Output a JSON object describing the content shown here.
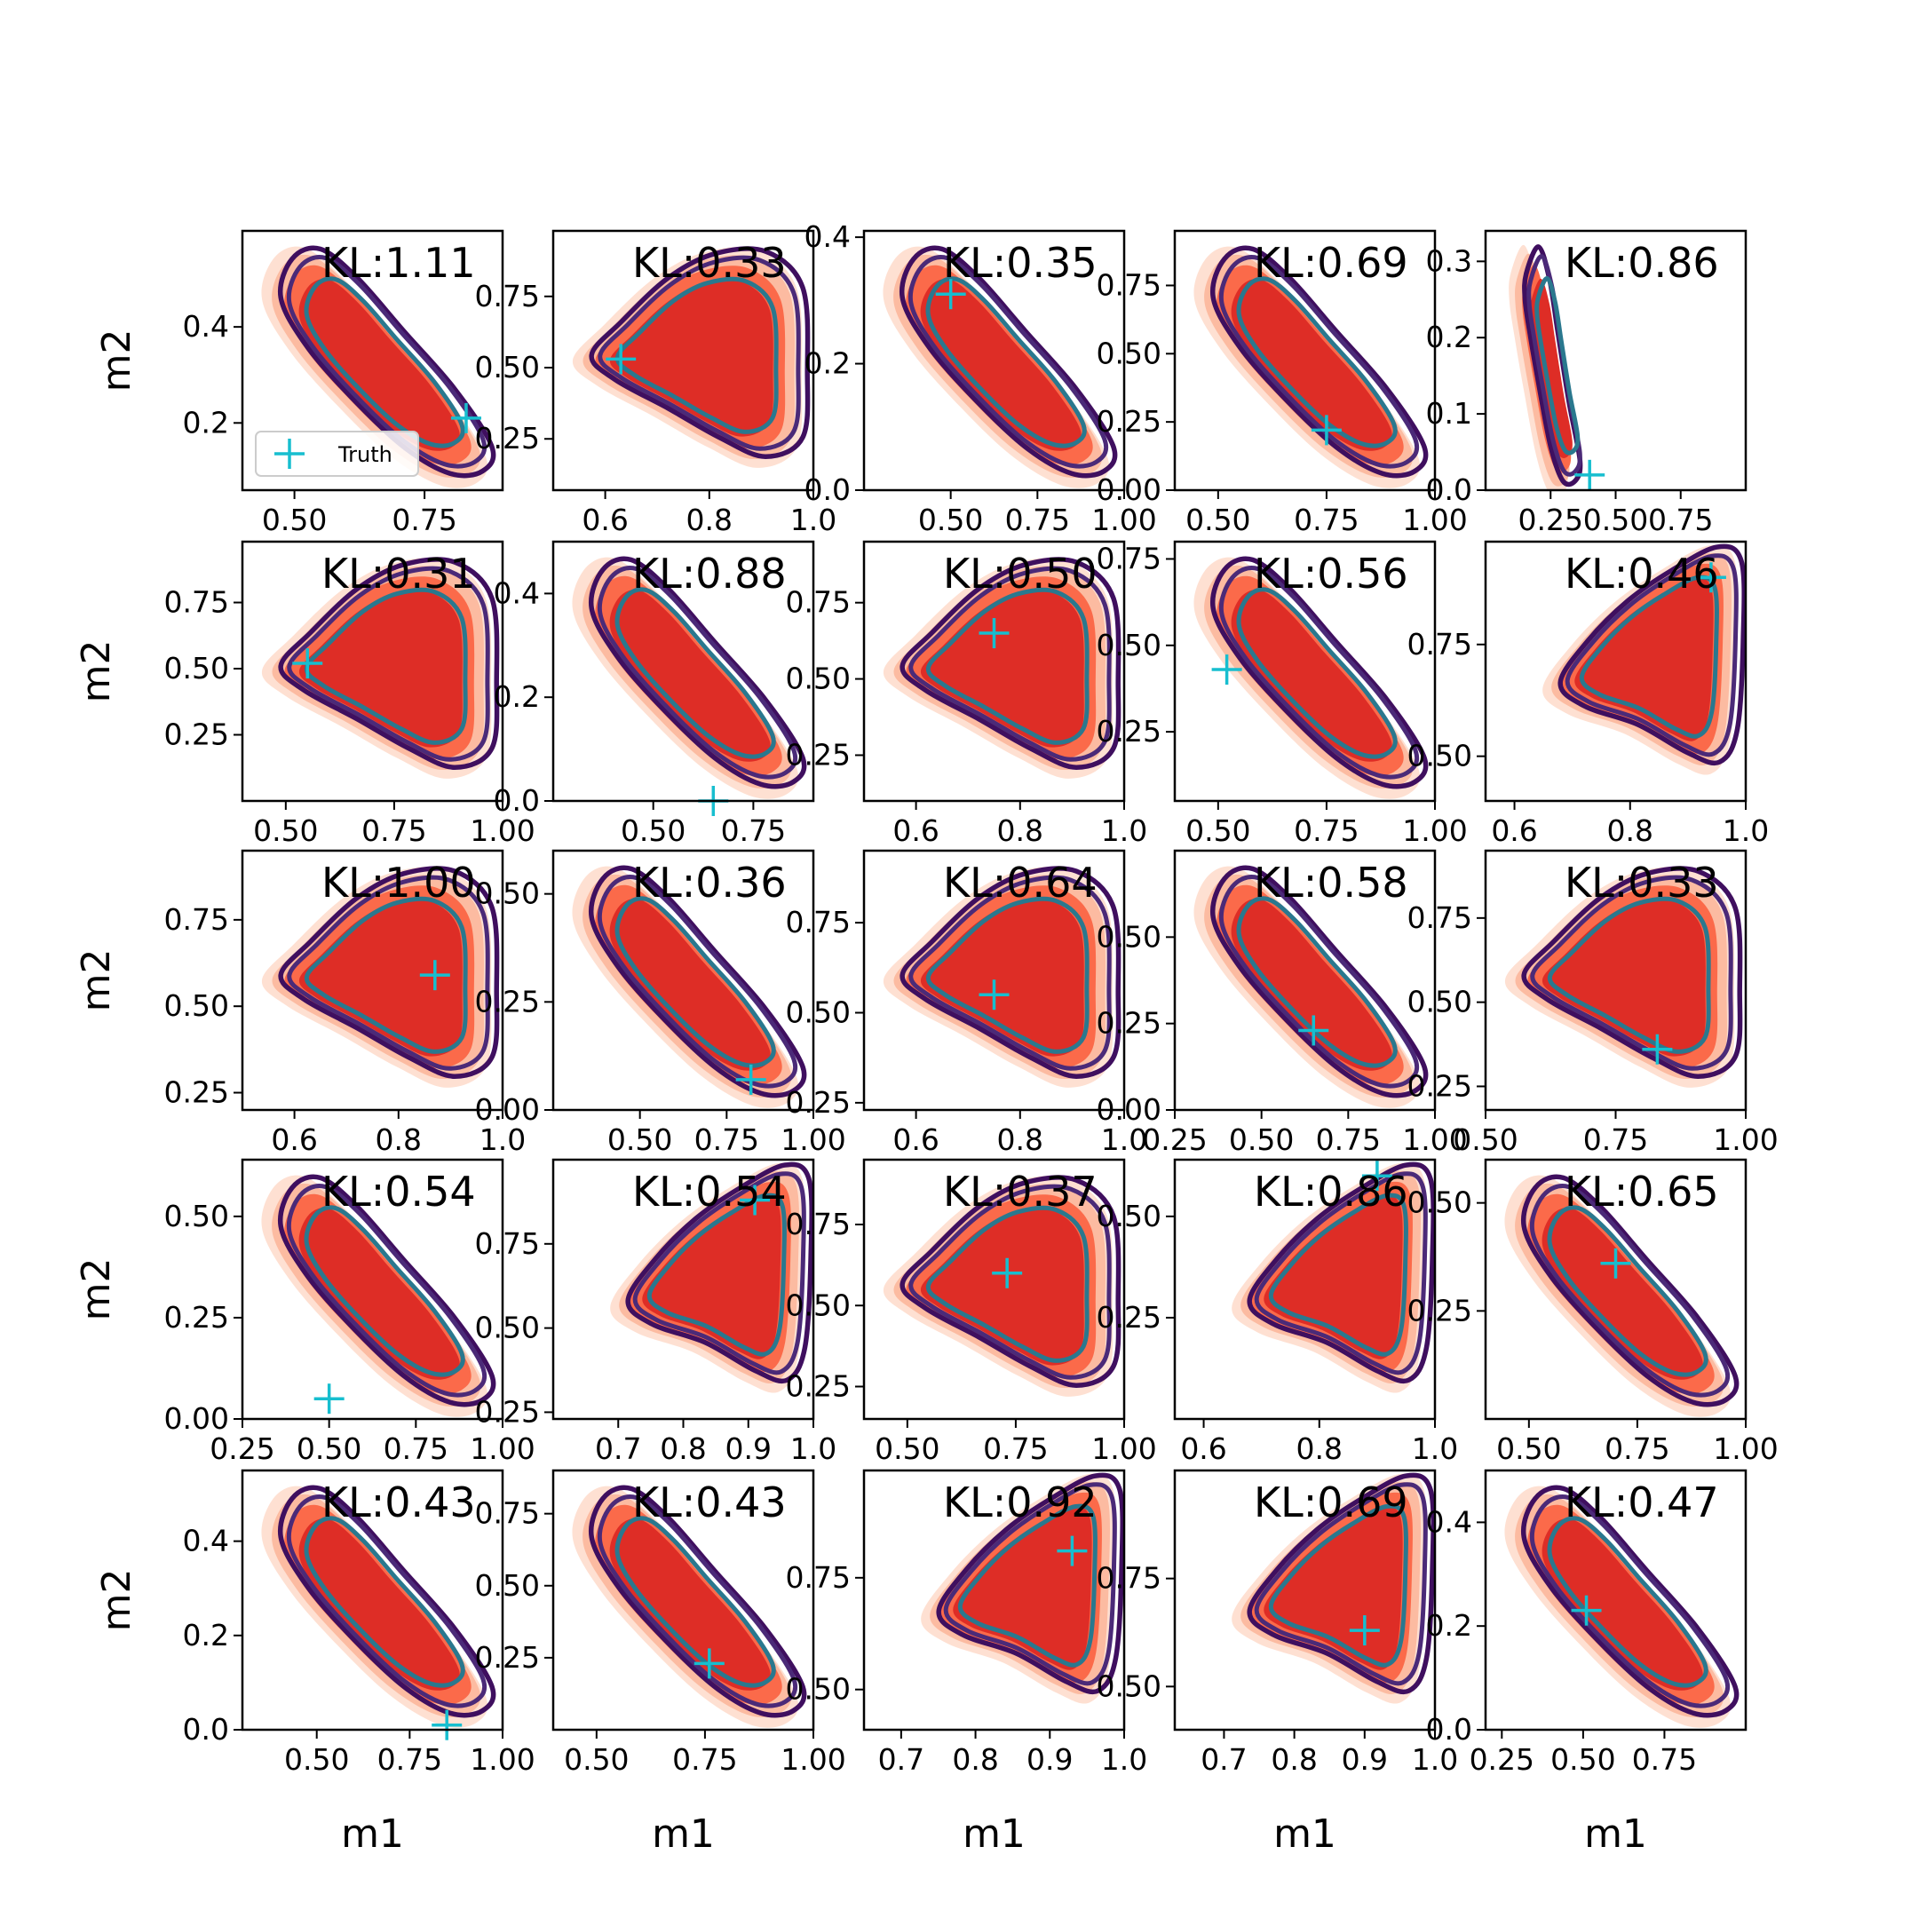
{
  "figure": {
    "xlabel": "m1",
    "ylabel": "m2",
    "legend_label": "Truth"
  },
  "colors": {
    "fill_levels": [
      "#fee0d2",
      "#fcbba1",
      "#fb6a4a",
      "#de2d26"
    ],
    "contour_outer": "#3f0f5f",
    "contour_mid": "#4b2a78",
    "contour_inner": "#2a788e",
    "truth_marker": "#17becf"
  },
  "chart_data": [
    {
      "type": "contour",
      "row": 0,
      "col": 0,
      "title": "KL:1.11",
      "xlim": [
        0.4,
        0.9
      ],
      "ylim": [
        0.06,
        0.6
      ],
      "xticks": [
        0.5,
        0.75
      ],
      "xtick_labels": [
        "0.50",
        "0.75"
      ],
      "yticks": [
        0.2,
        0.4
      ],
      "ytick_labels": [
        "0.2",
        "0.4"
      ],
      "truth": [
        0.83,
        0.21
      ],
      "shape": "diag-down",
      "legend": true
    },
    {
      "type": "contour",
      "row": 0,
      "col": 1,
      "title": "KL:0.33",
      "xlim": [
        0.5,
        1.0
      ],
      "ylim": [
        0.07,
        0.98
      ],
      "xticks": [
        0.6,
        0.8,
        1.0
      ],
      "xtick_labels": [
        "0.6",
        "0.8",
        "1.0"
      ],
      "yticks": [
        0.25,
        0.5,
        0.75
      ],
      "ytick_labels": [
        "0.25",
        "0.50",
        "0.75"
      ],
      "truth": [
        0.63,
        0.53
      ],
      "shape": "wedge-right"
    },
    {
      "type": "contour",
      "row": 0,
      "col": 2,
      "title": "KL:0.35",
      "xlim": [
        0.25,
        1.0
      ],
      "ylim": [
        0.0,
        0.41
      ],
      "xticks": [
        0.5,
        0.75,
        1.0
      ],
      "xtick_labels": [
        "0.50",
        "0.75",
        "1.00"
      ],
      "yticks": [
        0.0,
        0.2,
        0.4
      ],
      "ytick_labels": [
        "0.0",
        "0.2",
        "0.4"
      ],
      "truth": [
        0.5,
        0.31
      ],
      "shape": "diag-down"
    },
    {
      "type": "contour",
      "row": 0,
      "col": 3,
      "title": "KL:0.69",
      "xlim": [
        0.4,
        1.0
      ],
      "ylim": [
        0.0,
        0.95
      ],
      "xticks": [
        0.5,
        0.75,
        1.0
      ],
      "xtick_labels": [
        "0.50",
        "0.75",
        "1.00"
      ],
      "yticks": [
        0.0,
        0.25,
        0.5,
        0.75
      ],
      "ytick_labels": [
        "0.00",
        "0.25",
        "0.50",
        "0.75"
      ],
      "truth": [
        0.75,
        0.22
      ],
      "shape": "diag-down"
    },
    {
      "type": "contour",
      "row": 0,
      "col": 4,
      "title": "KL:0.86",
      "xlim": [
        0.0,
        1.0
      ],
      "ylim": [
        0.0,
        0.34
      ],
      "xticks": [
        0.25,
        0.5,
        0.75
      ],
      "xtick_labels": [
        "0.25",
        "0.50",
        "0.75"
      ],
      "yticks": [
        0.0,
        0.1,
        0.2,
        0.3
      ],
      "ytick_labels": [
        "0.0",
        "0.1",
        "0.2",
        "0.3"
      ],
      "truth": [
        0.4,
        0.02
      ],
      "shape": "narrow-down"
    },
    {
      "type": "contour",
      "row": 1,
      "col": 0,
      "title": "KL:0.31",
      "xlim": [
        0.4,
        1.0
      ],
      "ylim": [
        0.0,
        0.98
      ],
      "xticks": [
        0.5,
        0.75,
        1.0
      ],
      "xtick_labels": [
        "0.50",
        "0.75",
        "1.00"
      ],
      "yticks": [
        0.25,
        0.5,
        0.75
      ],
      "ytick_labels": [
        "0.25",
        "0.50",
        "0.75"
      ],
      "truth": [
        0.55,
        0.52
      ],
      "shape": "wedge-right"
    },
    {
      "type": "contour",
      "row": 1,
      "col": 1,
      "title": "KL:0.88",
      "xlim": [
        0.25,
        0.9
      ],
      "ylim": [
        0.0,
        0.5
      ],
      "xticks": [
        0.5,
        0.75
      ],
      "xtick_labels": [
        "0.50",
        "0.75"
      ],
      "yticks": [
        0.0,
        0.2,
        0.4
      ],
      "ytick_labels": [
        "0.0",
        "0.2",
        "0.4"
      ],
      "truth": [
        0.65,
        0.0
      ],
      "shape": "diag-down"
    },
    {
      "type": "contour",
      "row": 1,
      "col": 2,
      "title": "KL:0.50",
      "xlim": [
        0.5,
        1.0
      ],
      "ylim": [
        0.1,
        0.95
      ],
      "xticks": [
        0.6,
        0.8,
        1.0
      ],
      "xtick_labels": [
        "0.6",
        "0.8",
        "1.0"
      ],
      "yticks": [
        0.25,
        0.5,
        0.75
      ],
      "ytick_labels": [
        "0.25",
        "0.50",
        "0.75"
      ],
      "truth": [
        0.75,
        0.65
      ],
      "shape": "wedge-right"
    },
    {
      "type": "contour",
      "row": 1,
      "col": 3,
      "title": "KL:0.56",
      "xlim": [
        0.4,
        1.0
      ],
      "ylim": [
        0.05,
        0.8
      ],
      "xticks": [
        0.5,
        0.75,
        1.0
      ],
      "xtick_labels": [
        "0.50",
        "0.75",
        "1.00"
      ],
      "yticks": [
        0.25,
        0.5,
        0.75
      ],
      "ytick_labels": [
        "0.25",
        "0.50",
        "0.75"
      ],
      "truth": [
        0.52,
        0.43
      ],
      "shape": "diag-down"
    },
    {
      "type": "contour",
      "row": 1,
      "col": 4,
      "title": "KL:0.46",
      "xlim": [
        0.55,
        1.0
      ],
      "ylim": [
        0.4,
        0.98
      ],
      "xticks": [
        0.6,
        0.8,
        1.0
      ],
      "xtick_labels": [
        "0.6",
        "0.8",
        "1.0"
      ],
      "yticks": [
        0.5,
        0.75
      ],
      "ytick_labels": [
        "0.50",
        "0.75"
      ],
      "truth": [
        0.94,
        0.9
      ],
      "shape": "wedge-up"
    },
    {
      "type": "contour",
      "row": 2,
      "col": 0,
      "title": "KL:1.00",
      "xlim": [
        0.5,
        1.0
      ],
      "ylim": [
        0.2,
        0.95
      ],
      "xticks": [
        0.6,
        0.8,
        1.0
      ],
      "xtick_labels": [
        "0.6",
        "0.8",
        "1.0"
      ],
      "yticks": [
        0.25,
        0.5,
        0.75
      ],
      "ytick_labels": [
        "0.25",
        "0.50",
        "0.75"
      ],
      "truth": [
        0.87,
        0.59
      ],
      "shape": "wedge-right"
    },
    {
      "type": "contour",
      "row": 2,
      "col": 1,
      "title": "KL:0.36",
      "xlim": [
        0.25,
        1.0
      ],
      "ylim": [
        0.0,
        0.6
      ],
      "xticks": [
        0.5,
        0.75,
        1.0
      ],
      "xtick_labels": [
        "0.50",
        "0.75",
        "1.00"
      ],
      "yticks": [
        0.0,
        0.25,
        0.5
      ],
      "ytick_labels": [
        "0.00",
        "0.25",
        "0.50"
      ],
      "truth": [
        0.82,
        0.07
      ],
      "shape": "diag-down"
    },
    {
      "type": "contour",
      "row": 2,
      "col": 2,
      "title": "KL:0.64",
      "xlim": [
        0.5,
        1.0
      ],
      "ylim": [
        0.23,
        0.95
      ],
      "xticks": [
        0.6,
        0.8,
        1.0
      ],
      "xtick_labels": [
        "0.6",
        "0.8",
        "1.0"
      ],
      "yticks": [
        0.25,
        0.5,
        0.75
      ],
      "ytick_labels": [
        "0.25",
        "0.50",
        "0.75"
      ],
      "truth": [
        0.75,
        0.55
      ],
      "shape": "wedge-right"
    },
    {
      "type": "contour",
      "row": 2,
      "col": 3,
      "title": "KL:0.58",
      "xlim": [
        0.25,
        1.0
      ],
      "ylim": [
        0.0,
        0.75
      ],
      "xticks": [
        0.25,
        0.5,
        0.75,
        1.0
      ],
      "xtick_labels": [
        "0.25",
        "0.50",
        "0.75",
        "1.00"
      ],
      "yticks": [
        0.0,
        0.25,
        0.5
      ],
      "ytick_labels": [
        "0.00",
        "0.25",
        "0.50"
      ],
      "truth": [
        0.65,
        0.23
      ],
      "shape": "diag-down"
    },
    {
      "type": "contour",
      "row": 2,
      "col": 4,
      "title": "KL:0.33",
      "xlim": [
        0.5,
        1.0
      ],
      "ylim": [
        0.18,
        0.95
      ],
      "xticks": [
        0.5,
        0.75,
        1.0
      ],
      "xtick_labels": [
        "0.50",
        "0.75",
        "1.00"
      ],
      "yticks": [
        0.25,
        0.5,
        0.75
      ],
      "ytick_labels": [
        "0.25",
        "0.50",
        "0.75"
      ],
      "truth": [
        0.83,
        0.36
      ],
      "shape": "wedge-right"
    },
    {
      "type": "contour",
      "row": 3,
      "col": 0,
      "title": "KL:0.54",
      "xlim": [
        0.25,
        1.0
      ],
      "ylim": [
        0.0,
        0.64
      ],
      "xticks": [
        0.25,
        0.5,
        0.75,
        1.0
      ],
      "xtick_labels": [
        "0.25",
        "0.50",
        "0.75",
        "1.00"
      ],
      "yticks": [
        0.0,
        0.25,
        0.5
      ],
      "ytick_labels": [
        "0.00",
        "0.25",
        "0.50"
      ],
      "truth": [
        0.5,
        0.05
      ],
      "shape": "diag-down"
    },
    {
      "type": "contour",
      "row": 3,
      "col": 1,
      "title": "KL:0.54",
      "xlim": [
        0.6,
        1.0
      ],
      "ylim": [
        0.23,
        1.0
      ],
      "xticks": [
        0.7,
        0.8,
        0.9,
        1.0
      ],
      "xtick_labels": [
        "0.7",
        "0.8",
        "0.9",
        "1.0"
      ],
      "yticks": [
        0.25,
        0.5,
        0.75
      ],
      "ytick_labels": [
        "0.25",
        "0.50",
        "0.75"
      ],
      "truth": [
        0.91,
        0.88
      ],
      "shape": "wedge-up"
    },
    {
      "type": "contour",
      "row": 3,
      "col": 2,
      "title": "KL:0.37",
      "xlim": [
        0.4,
        1.0
      ],
      "ylim": [
        0.15,
        0.95
      ],
      "xticks": [
        0.5,
        0.75,
        1.0
      ],
      "xtick_labels": [
        "0.50",
        "0.75",
        "1.00"
      ],
      "yticks": [
        0.25,
        0.5,
        0.75
      ],
      "ytick_labels": [
        "0.25",
        "0.50",
        "0.75"
      ],
      "truth": [
        0.73,
        0.6
      ],
      "shape": "wedge-right"
    },
    {
      "type": "contour",
      "row": 3,
      "col": 3,
      "title": "KL:0.86",
      "xlim": [
        0.55,
        1.0
      ],
      "ylim": [
        0.0,
        0.64
      ],
      "xticks": [
        0.6,
        0.8,
        1.0
      ],
      "xtick_labels": [
        "0.6",
        "0.8",
        "1.0"
      ],
      "yticks": [
        0.25,
        0.5
      ],
      "ytick_labels": [
        "0.25",
        "0.50"
      ],
      "truth": [
        0.9,
        0.6
      ],
      "shape": "wedge-up"
    },
    {
      "type": "contour",
      "row": 3,
      "col": 4,
      "title": "KL:0.65",
      "xlim": [
        0.4,
        1.0
      ],
      "ylim": [
        0.0,
        0.6
      ],
      "xticks": [
        0.5,
        0.75,
        1.0
      ],
      "xtick_labels": [
        "0.50",
        "0.75",
        "1.00"
      ],
      "yticks": [
        0.25,
        0.5
      ],
      "ytick_labels": [
        "0.25",
        "0.50"
      ],
      "truth": [
        0.7,
        0.36
      ],
      "shape": "diag-down"
    },
    {
      "type": "contour",
      "row": 4,
      "col": 0,
      "title": "KL:0.43",
      "xlim": [
        0.3,
        1.0
      ],
      "ylim": [
        0.0,
        0.55
      ],
      "xticks": [
        0.5,
        0.75,
        1.0
      ],
      "xtick_labels": [
        "0.50",
        "0.75",
        "1.00"
      ],
      "yticks": [
        0.0,
        0.2,
        0.4
      ],
      "ytick_labels": [
        "0.0",
        "0.2",
        "0.4"
      ],
      "truth": [
        0.85,
        0.01
      ],
      "shape": "diag-down"
    },
    {
      "type": "contour",
      "row": 4,
      "col": 1,
      "title": "KL:0.43",
      "xlim": [
        0.4,
        1.0
      ],
      "ylim": [
        0.0,
        0.9
      ],
      "xticks": [
        0.5,
        0.75,
        1.0
      ],
      "xtick_labels": [
        "0.50",
        "0.75",
        "1.00"
      ],
      "yticks": [
        0.25,
        0.5,
        0.75
      ],
      "ytick_labels": [
        "0.25",
        "0.50",
        "0.75"
      ],
      "truth": [
        0.76,
        0.23
      ],
      "shape": "diag-down"
    },
    {
      "type": "contour",
      "row": 4,
      "col": 2,
      "title": "KL:0.92",
      "xlim": [
        0.65,
        1.0
      ],
      "ylim": [
        0.41,
        0.99
      ],
      "xticks": [
        0.7,
        0.8,
        0.9,
        1.0
      ],
      "xtick_labels": [
        "0.7",
        "0.8",
        "0.9",
        "1.0"
      ],
      "yticks": [
        0.5,
        0.75
      ],
      "ytick_labels": [
        "0.50",
        "0.75"
      ],
      "truth": [
        0.93,
        0.81
      ],
      "shape": "wedge-up"
    },
    {
      "type": "contour",
      "row": 4,
      "col": 3,
      "title": "KL:0.69",
      "xlim": [
        0.63,
        1.0
      ],
      "ylim": [
        0.4,
        1.0
      ],
      "xticks": [
        0.7,
        0.8,
        0.9,
        1.0
      ],
      "xtick_labels": [
        "0.7",
        "0.8",
        "0.9",
        "1.0"
      ],
      "yticks": [
        0.5,
        0.75
      ],
      "ytick_labels": [
        "0.50",
        "0.75"
      ],
      "truth": [
        0.9,
        0.63
      ],
      "shape": "wedge-up"
    },
    {
      "type": "contour",
      "row": 4,
      "col": 4,
      "title": "KL:0.47",
      "xlim": [
        0.2,
        1.0
      ],
      "ylim": [
        0.0,
        0.5
      ],
      "xticks": [
        0.25,
        0.5,
        0.75
      ],
      "xtick_labels": [
        "0.25",
        "0.50",
        "0.75"
      ],
      "yticks": [
        0.0,
        0.2,
        0.4
      ],
      "ytick_labels": [
        "0.0",
        "0.2",
        "0.4"
      ],
      "truth": [
        0.51,
        0.23
      ],
      "shape": "diag-down"
    }
  ]
}
